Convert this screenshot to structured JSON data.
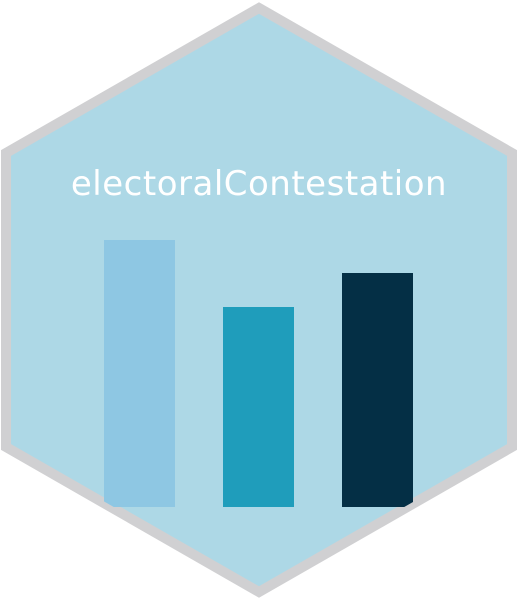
{
  "logo": {
    "title": "electoralContestation"
  },
  "colors": {
    "hex_fill": "#add8e6",
    "hex_border": "#d0d0d2",
    "title_text": "#ffffff",
    "bar_1": "#8ec7e3",
    "bar_2": "#1f9dbb",
    "bar_3": "#042f45"
  },
  "bars": [
    {
      "name": "bar-left",
      "relative_height": 1.0
    },
    {
      "name": "bar-middle",
      "relative_height": 0.75
    },
    {
      "name": "bar-right",
      "relative_height": 0.875
    }
  ]
}
